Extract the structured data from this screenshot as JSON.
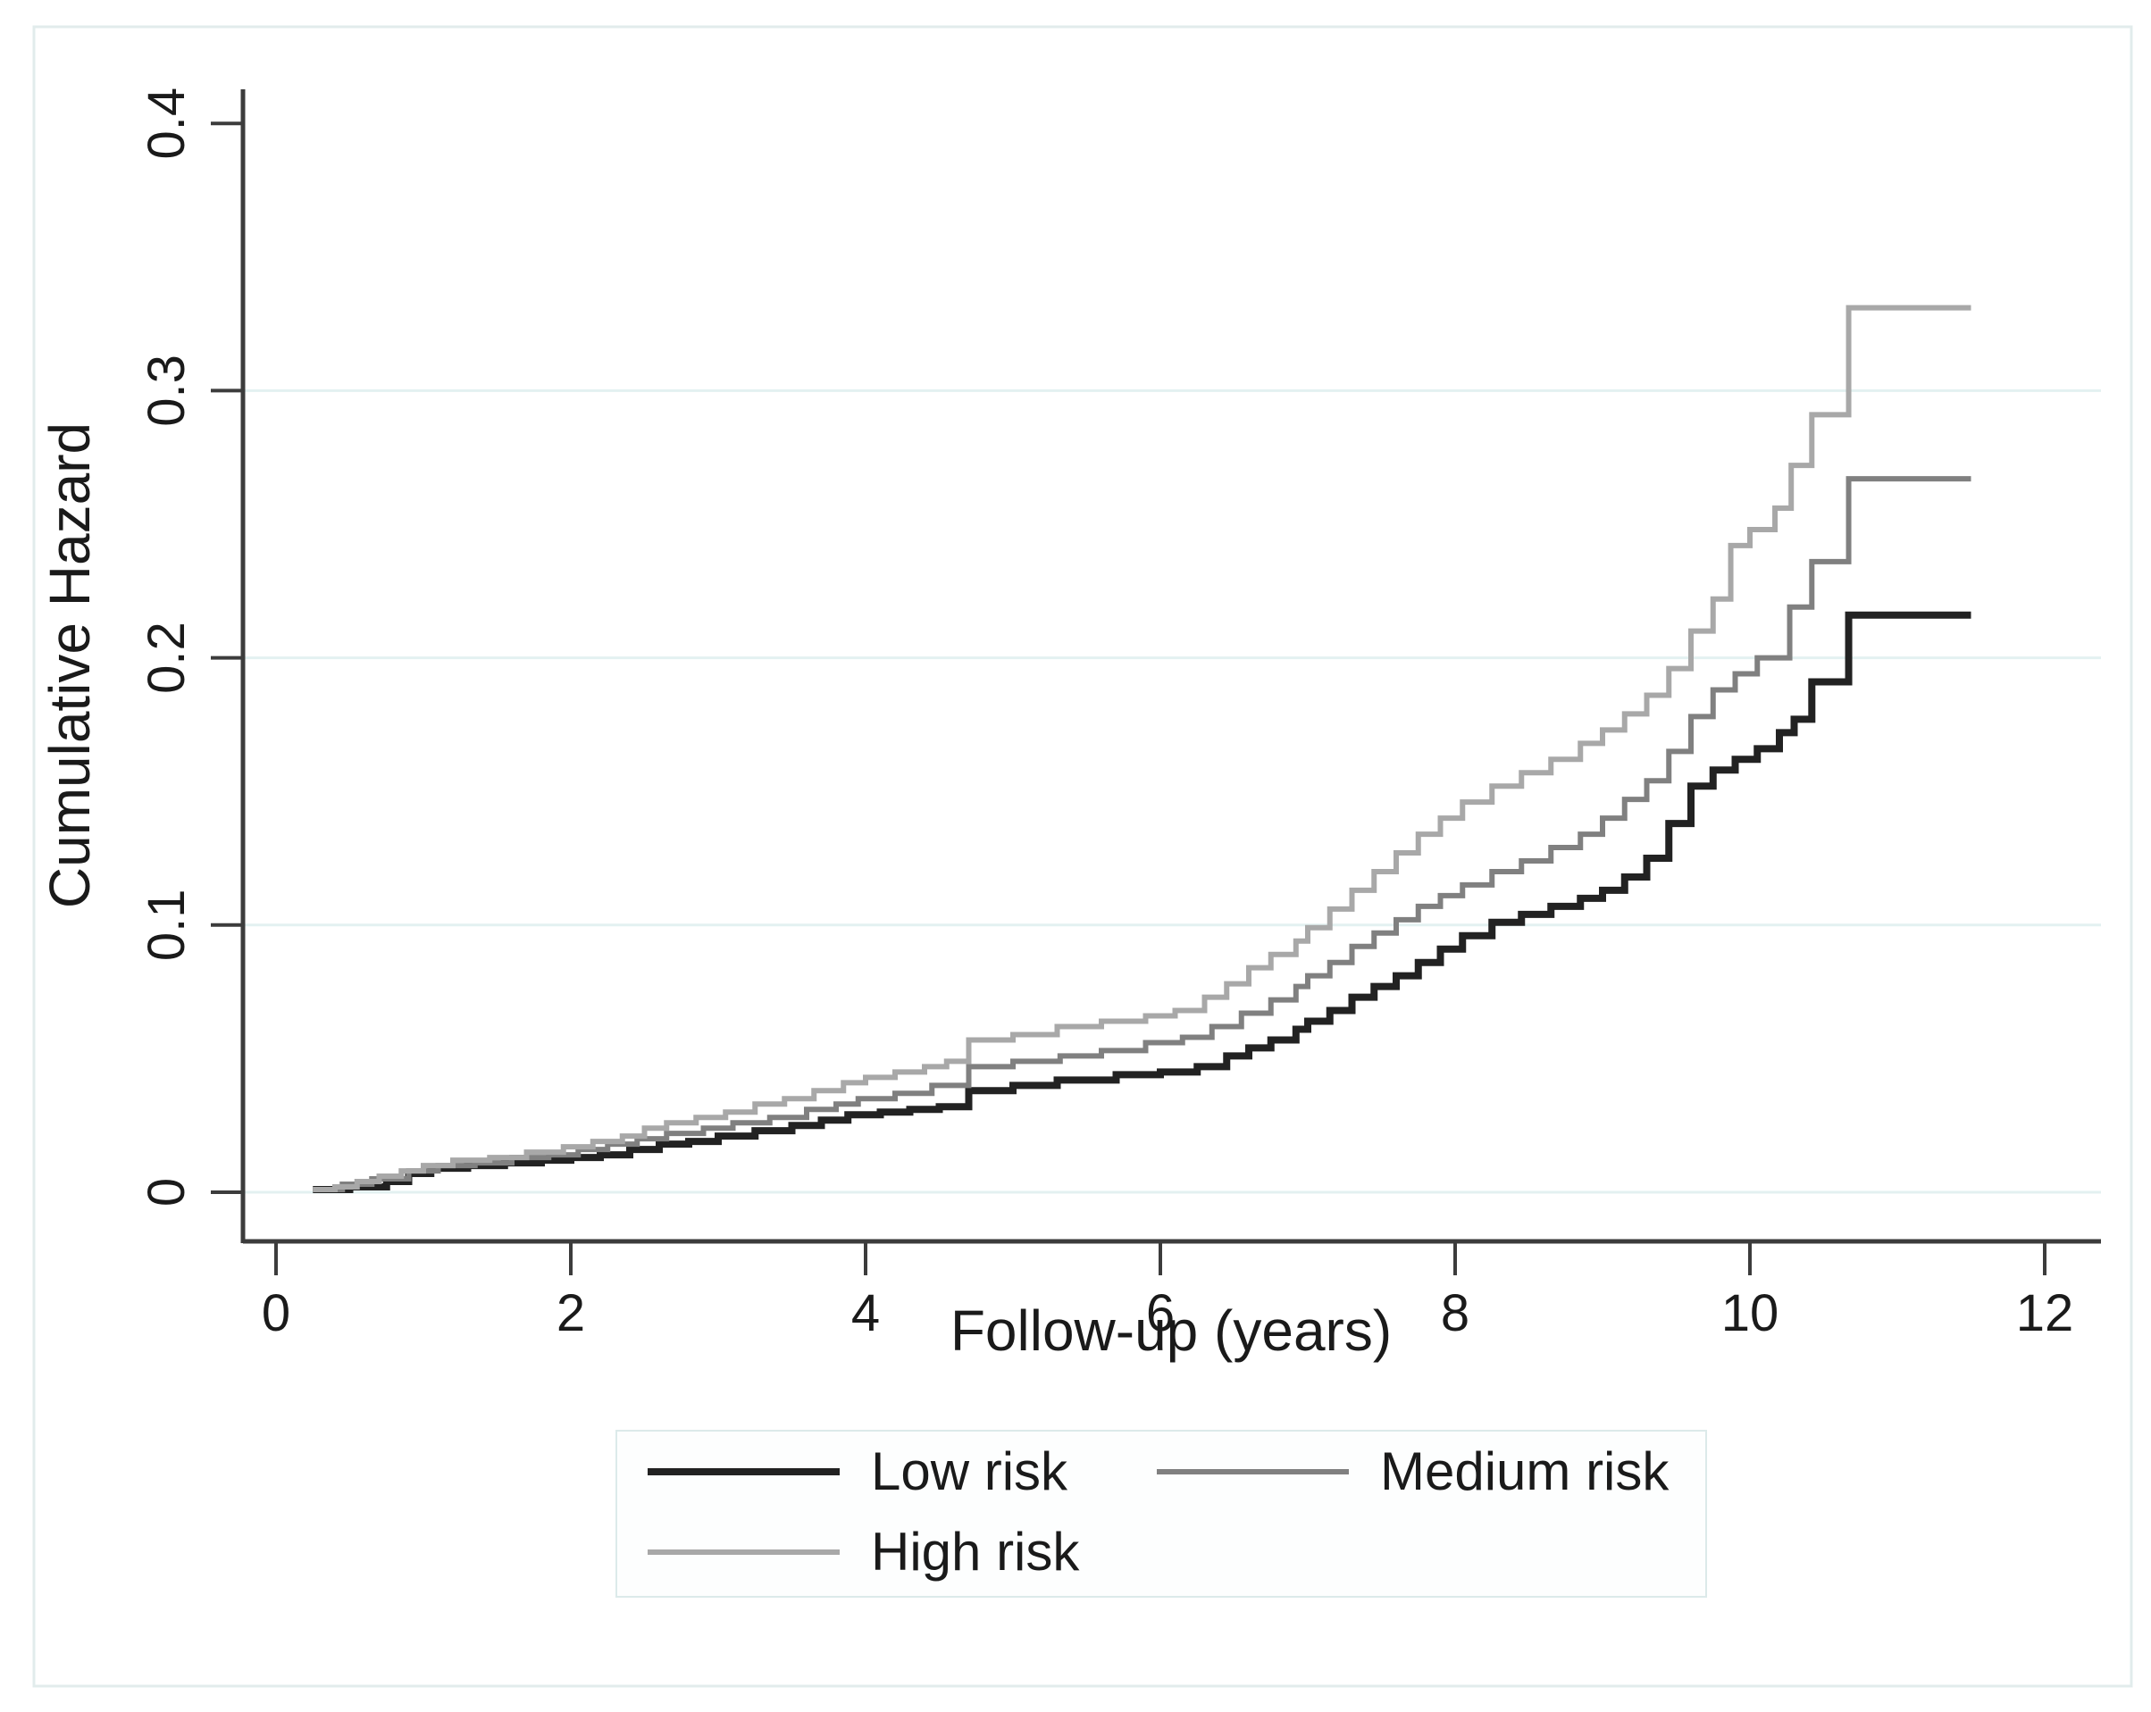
{
  "figure": {
    "background": "#ffffff",
    "frame_color": "#e2ecec",
    "axis_color": "#3c3c3c",
    "grid_color": "#e3f1f1",
    "text_color": "#1a1a1a",
    "legend_box_fill": "#fdfefe",
    "legend_box_border": "#dceaea"
  },
  "chart_data": {
    "type": "line",
    "subtype": "step-after",
    "title": "",
    "xlabel": "Follow-up (years)",
    "ylabel": "Cumulative Hazard",
    "xlim": [
      0,
      12.6
    ],
    "ylim": [
      0,
      0.42
    ],
    "xticks": [
      0,
      2,
      4,
      6,
      8,
      10,
      12
    ],
    "ytick_labels": [
      "0",
      "0.1",
      "0.2",
      "0.3",
      "0.4"
    ],
    "ytick_values": [
      0,
      0.1,
      0.2,
      0.3,
      0.4
    ],
    "grid_values": [
      0,
      0.1,
      0.2,
      0.3
    ],
    "grid_on": true,
    "legend_position": "bottom",
    "follow_up_end_years": 11.5,
    "series": [
      {
        "name": "Low risk",
        "color": "#222222",
        "line_width": 8,
        "points": [
          [
            0.25,
            0.001
          ],
          [
            0.5,
            0.002
          ],
          [
            0.75,
            0.004
          ],
          [
            0.9,
            0.007
          ],
          [
            1.05,
            0.009
          ],
          [
            1.3,
            0.01
          ],
          [
            1.55,
            0.011
          ],
          [
            1.8,
            0.012
          ],
          [
            2.0,
            0.013
          ],
          [
            2.2,
            0.014
          ],
          [
            2.4,
            0.016
          ],
          [
            2.6,
            0.018
          ],
          [
            2.8,
            0.019
          ],
          [
            3.0,
            0.021
          ],
          [
            3.25,
            0.023
          ],
          [
            3.5,
            0.025
          ],
          [
            3.7,
            0.027
          ],
          [
            3.88,
            0.029
          ],
          [
            4.1,
            0.03
          ],
          [
            4.3,
            0.031
          ],
          [
            4.5,
            0.032
          ],
          [
            4.7,
            0.038
          ],
          [
            5.0,
            0.04
          ],
          [
            5.3,
            0.042
          ],
          [
            5.7,
            0.044
          ],
          [
            6.0,
            0.045
          ],
          [
            6.25,
            0.047
          ],
          [
            6.45,
            0.051
          ],
          [
            6.6,
            0.054
          ],
          [
            6.75,
            0.057
          ],
          [
            6.92,
            0.061
          ],
          [
            7.0,
            0.064
          ],
          [
            7.15,
            0.068
          ],
          [
            7.3,
            0.073
          ],
          [
            7.45,
            0.077
          ],
          [
            7.6,
            0.081
          ],
          [
            7.75,
            0.086
          ],
          [
            7.9,
            0.091
          ],
          [
            8.05,
            0.096
          ],
          [
            8.25,
            0.101
          ],
          [
            8.45,
            0.104
          ],
          [
            8.65,
            0.107
          ],
          [
            8.85,
            0.11
          ],
          [
            9.0,
            0.113
          ],
          [
            9.15,
            0.118
          ],
          [
            9.3,
            0.125
          ],
          [
            9.45,
            0.138
          ],
          [
            9.6,
            0.152
          ],
          [
            9.75,
            0.158
          ],
          [
            9.9,
            0.162
          ],
          [
            10.05,
            0.166
          ],
          [
            10.2,
            0.172
          ],
          [
            10.3,
            0.177
          ],
          [
            10.42,
            0.191
          ],
          [
            10.67,
            0.216
          ],
          [
            11.5,
            0.216
          ]
        ]
      },
      {
        "name": "Medium risk",
        "color": "#808080",
        "line_width": 6,
        "points": [
          [
            0.25,
            0.001
          ],
          [
            0.45,
            0.003
          ],
          [
            0.65,
            0.005
          ],
          [
            0.9,
            0.008
          ],
          [
            1.1,
            0.01
          ],
          [
            1.35,
            0.011
          ],
          [
            1.6,
            0.013
          ],
          [
            1.85,
            0.014
          ],
          [
            2.05,
            0.016
          ],
          [
            2.25,
            0.018
          ],
          [
            2.45,
            0.02
          ],
          [
            2.65,
            0.022
          ],
          [
            2.9,
            0.024
          ],
          [
            3.1,
            0.026
          ],
          [
            3.35,
            0.028
          ],
          [
            3.6,
            0.031
          ],
          [
            3.8,
            0.033
          ],
          [
            3.95,
            0.035
          ],
          [
            4.2,
            0.037
          ],
          [
            4.45,
            0.04
          ],
          [
            4.7,
            0.047
          ],
          [
            5.0,
            0.049
          ],
          [
            5.32,
            0.051
          ],
          [
            5.6,
            0.053
          ],
          [
            5.9,
            0.056
          ],
          [
            6.15,
            0.058
          ],
          [
            6.35,
            0.062
          ],
          [
            6.55,
            0.067
          ],
          [
            6.75,
            0.072
          ],
          [
            6.92,
            0.077
          ],
          [
            7.0,
            0.081
          ],
          [
            7.15,
            0.086
          ],
          [
            7.3,
            0.092
          ],
          [
            7.45,
            0.097
          ],
          [
            7.6,
            0.102
          ],
          [
            7.75,
            0.107
          ],
          [
            7.9,
            0.111
          ],
          [
            8.05,
            0.115
          ],
          [
            8.25,
            0.12
          ],
          [
            8.45,
            0.124
          ],
          [
            8.65,
            0.129
          ],
          [
            8.85,
            0.134
          ],
          [
            9.0,
            0.14
          ],
          [
            9.15,
            0.147
          ],
          [
            9.3,
            0.154
          ],
          [
            9.45,
            0.165
          ],
          [
            9.6,
            0.178
          ],
          [
            9.75,
            0.188
          ],
          [
            9.9,
            0.194
          ],
          [
            10.05,
            0.2
          ],
          [
            10.27,
            0.219
          ],
          [
            10.42,
            0.236
          ],
          [
            10.67,
            0.267
          ],
          [
            11.5,
            0.267
          ]
        ]
      },
      {
        "name": "High risk",
        "color": "#a8a8a8",
        "line_width": 6,
        "points": [
          [
            0.25,
            0.001
          ],
          [
            0.4,
            0.002
          ],
          [
            0.55,
            0.004
          ],
          [
            0.7,
            0.006
          ],
          [
            0.85,
            0.008
          ],
          [
            1.0,
            0.01
          ],
          [
            1.2,
            0.012
          ],
          [
            1.45,
            0.013
          ],
          [
            1.7,
            0.015
          ],
          [
            1.95,
            0.017
          ],
          [
            2.15,
            0.019
          ],
          [
            2.35,
            0.021
          ],
          [
            2.5,
            0.024
          ],
          [
            2.65,
            0.026
          ],
          [
            2.85,
            0.028
          ],
          [
            3.05,
            0.03
          ],
          [
            3.25,
            0.033
          ],
          [
            3.45,
            0.035
          ],
          [
            3.65,
            0.038
          ],
          [
            3.85,
            0.041
          ],
          [
            4.0,
            0.043
          ],
          [
            4.2,
            0.045
          ],
          [
            4.4,
            0.047
          ],
          [
            4.55,
            0.049
          ],
          [
            4.7,
            0.057
          ],
          [
            5.0,
            0.059
          ],
          [
            5.3,
            0.062
          ],
          [
            5.6,
            0.064
          ],
          [
            5.9,
            0.066
          ],
          [
            6.1,
            0.068
          ],
          [
            6.3,
            0.073
          ],
          [
            6.45,
            0.078
          ],
          [
            6.6,
            0.084
          ],
          [
            6.75,
            0.089
          ],
          [
            6.92,
            0.094
          ],
          [
            7.0,
            0.099
          ],
          [
            7.15,
            0.106
          ],
          [
            7.3,
            0.113
          ],
          [
            7.45,
            0.12
          ],
          [
            7.6,
            0.127
          ],
          [
            7.75,
            0.134
          ],
          [
            7.9,
            0.14
          ],
          [
            8.05,
            0.146
          ],
          [
            8.25,
            0.152
          ],
          [
            8.45,
            0.157
          ],
          [
            8.65,
            0.162
          ],
          [
            8.85,
            0.168
          ],
          [
            9.0,
            0.173
          ],
          [
            9.15,
            0.179
          ],
          [
            9.3,
            0.186
          ],
          [
            9.45,
            0.196
          ],
          [
            9.6,
            0.21
          ],
          [
            9.75,
            0.222
          ],
          [
            9.87,
            0.242
          ],
          [
            10.0,
            0.248
          ],
          [
            10.17,
            0.256
          ],
          [
            10.28,
            0.272
          ],
          [
            10.42,
            0.291
          ],
          [
            10.67,
            0.331
          ],
          [
            11.5,
            0.331
          ]
        ]
      }
    ]
  },
  "legend": {
    "rows": [
      [
        "Low risk",
        "Medium risk"
      ],
      [
        "High risk"
      ]
    ]
  }
}
